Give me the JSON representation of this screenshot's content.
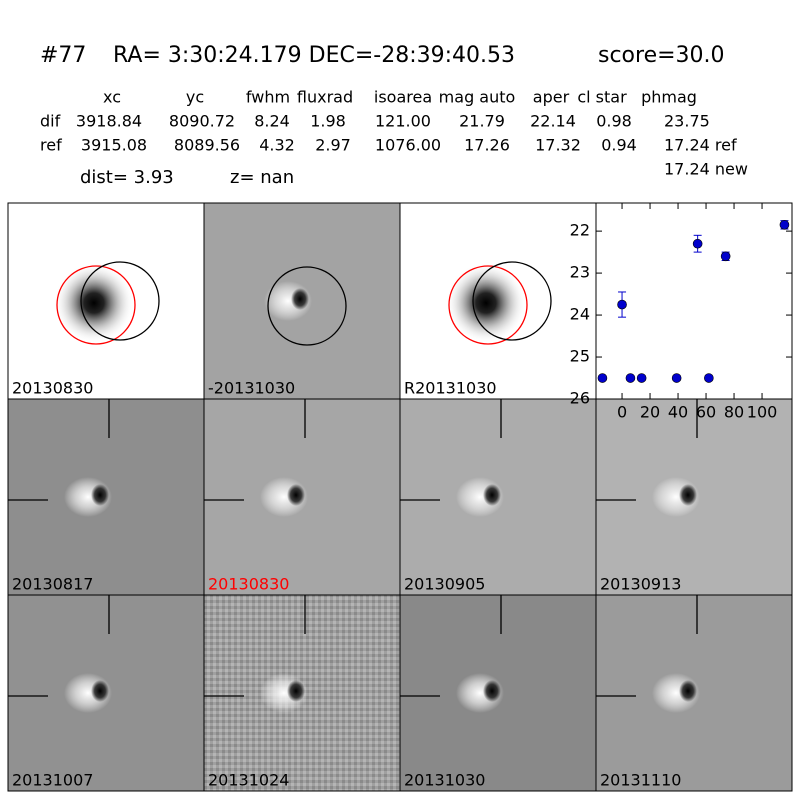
{
  "header": {
    "id": "#77",
    "coords": "RA= 3:30:24.179 DEC=-28:39:40.53",
    "score": "score=30.0"
  },
  "table": {
    "columns": [
      "xc",
      "yc",
      "fwhm",
      "fluxrad",
      "isoarea",
      "mag auto",
      "aper",
      "cl star",
      "phmag"
    ],
    "rows": [
      {
        "name": "dif",
        "values": [
          "3918.84",
          "8090.72",
          "8.24",
          "1.98",
          "121.00",
          "21.79",
          "22.14",
          "0.98",
          "23.75"
        ]
      },
      {
        "name": "ref",
        "values": [
          "3915.08",
          "8089.56",
          "4.32",
          "2.97",
          "1076.00",
          "17.26",
          "17.32",
          "0.94",
          "17.24 ref"
        ]
      }
    ],
    "extra": "17.24 new"
  },
  "dist": "dist=  3.93",
  "z": "z=   nan",
  "panels": [
    {
      "label": "20130830",
      "color": "#000000"
    },
    {
      "label": "-20131030",
      "color": "#000000"
    },
    {
      "label": "R20131030",
      "color": "#000000"
    },
    {
      "label": "20130817",
      "color": "#000000"
    },
    {
      "label": "20130830",
      "color": "#ff0000"
    },
    {
      "label": "20130905",
      "color": "#000000"
    },
    {
      "label": "20130913",
      "color": "#000000"
    },
    {
      "label": "20131007",
      "color": "#000000"
    },
    {
      "label": "20131024",
      "color": "#000000"
    },
    {
      "label": "20131030",
      "color": "#000000"
    },
    {
      "label": "20131110",
      "color": "#000000"
    }
  ],
  "chart_data": {
    "type": "scatter",
    "color": "#0000cc",
    "x": [
      -14,
      0,
      6,
      14,
      39,
      54,
      62,
      74,
      116
    ],
    "values": [
      25.5,
      23.75,
      25.5,
      25.5,
      25.5,
      22.3,
      25.5,
      22.6,
      21.85
    ],
    "errors": [
      0.05,
      0.3,
      0.05,
      0.05,
      0.05,
      0.2,
      0.05,
      0.1,
      0.1
    ],
    "xlim": [
      -18.6,
      121.4
    ],
    "xticks": [
      0,
      20,
      40,
      60,
      80,
      100
    ],
    "ylim": [
      26,
      21.33
    ],
    "yticks": [
      22,
      23,
      24,
      25,
      26
    ]
  }
}
